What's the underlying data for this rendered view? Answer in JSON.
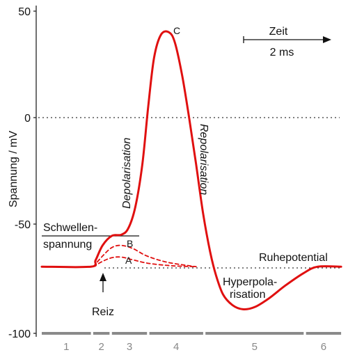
{
  "chart_data": {
    "type": "line",
    "ylabel": "Spannung / mV",
    "ylim": [
      -100,
      50
    ],
    "yticks": [
      "50",
      "0",
      "-50",
      "-100"
    ],
    "reference_lines": {
      "zero_mV": 0,
      "resting_mV": -70
    },
    "threshold": {
      "value_mV": -55,
      "label_line1": "Schwellen-",
      "label_line2": "spannung"
    },
    "time_scale": {
      "label": "Zeit",
      "value": "2 ms"
    },
    "stimulus_label": "Reiz",
    "series": [
      {
        "style": "solid",
        "color": "#e01010",
        "points": [
          [
            0.0,
            -70
          ],
          [
            2.1,
            -70
          ],
          [
            2.3,
            -67
          ],
          [
            2.6,
            -60
          ],
          [
            3.0,
            -55.5
          ],
          [
            3.4,
            -55
          ],
          [
            3.7,
            -52
          ],
          [
            4.0,
            -42
          ],
          [
            4.3,
            -22
          ],
          [
            4.55,
            5
          ],
          [
            4.8,
            28
          ],
          [
            5.1,
            39
          ],
          [
            5.45,
            40
          ],
          [
            5.7,
            35
          ],
          [
            6.0,
            20
          ],
          [
            6.3,
            0
          ],
          [
            6.6,
            -22
          ],
          [
            6.9,
            -45
          ],
          [
            7.2,
            -63
          ],
          [
            7.45,
            -74
          ],
          [
            7.75,
            -83
          ],
          [
            8.15,
            -88
          ],
          [
            8.6,
            -90
          ],
          [
            9.1,
            -89
          ],
          [
            9.7,
            -85
          ],
          [
            10.4,
            -79
          ],
          [
            11.2,
            -73
          ],
          [
            11.8,
            -70
          ],
          [
            12.8,
            -70
          ]
        ]
      },
      {
        "style": "dashed",
        "color": "#e01010",
        "curve_label": "B",
        "points": [
          [
            2.2,
            -70
          ],
          [
            2.6,
            -65
          ],
          [
            3.0,
            -61
          ],
          [
            3.4,
            -60
          ],
          [
            3.9,
            -61.5
          ],
          [
            4.5,
            -65
          ],
          [
            5.4,
            -68
          ],
          [
            6.6,
            -70
          ]
        ]
      },
      {
        "style": "dashed",
        "color": "#e01010",
        "curve_label": "A",
        "points": [
          [
            2.2,
            -70
          ],
          [
            2.6,
            -67.5
          ],
          [
            3.0,
            -65.8
          ],
          [
            3.4,
            -65.5
          ],
          [
            3.9,
            -66.8
          ],
          [
            4.6,
            -68.5
          ],
          [
            5.6,
            -69.6
          ],
          [
            6.6,
            -70
          ]
        ]
      }
    ],
    "curve_labels": {
      "A": "A",
      "B": "B",
      "C": "C"
    },
    "annotations": {
      "depolarisation": "Depolarisation",
      "repolarisation": "Repolarisation",
      "ruhepotential": "Ruhepotential",
      "hyperpolarisation_line1": "Hyperpola-",
      "hyperpolarisation_line2": "risation"
    },
    "phases": [
      {
        "label": "1",
        "start": 0.0,
        "end": 2.1
      },
      {
        "label": "2",
        "start": 2.2,
        "end": 2.9
      },
      {
        "label": "3",
        "start": 3.0,
        "end": 4.5
      },
      {
        "label": "4",
        "start": 4.6,
        "end": 6.9
      },
      {
        "label": "5",
        "start": 7.0,
        "end": 11.2
      },
      {
        "label": "6",
        "start": 11.3,
        "end": 12.8
      }
    ]
  }
}
